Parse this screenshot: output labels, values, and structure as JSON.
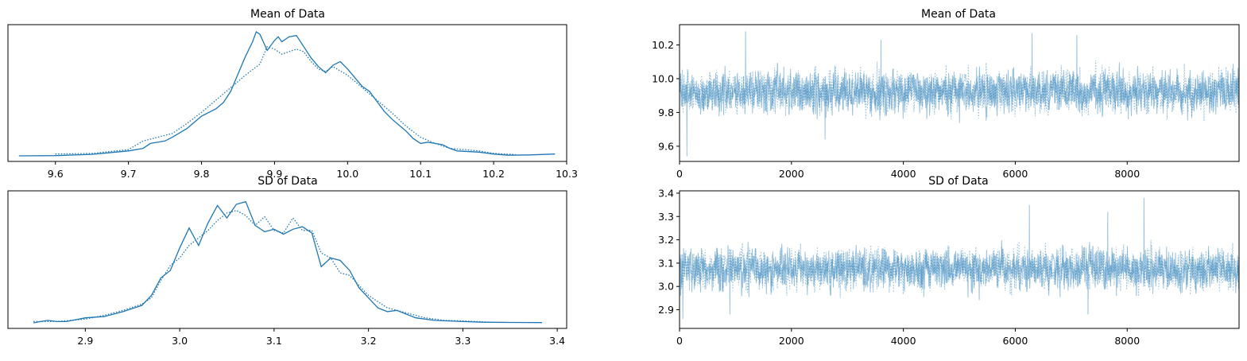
{
  "chart_data": [
    {
      "type": "line",
      "kind": "density",
      "title": "Mean of Data",
      "xlabel": "",
      "ylabel": "",
      "xlim": [
        9.535,
        10.3
      ],
      "x_ticks": [
        "9.6",
        "9.7",
        "9.8",
        "9.9",
        "10.0",
        "10.1",
        "10.2",
        "10.3"
      ],
      "y_ticks": [],
      "grid": false,
      "series": [
        {
          "style": "solid",
          "color": "#1f77b4",
          "x": [
            9.55,
            9.6,
            9.65,
            9.7,
            9.72,
            9.73,
            9.75,
            9.76,
            9.78,
            9.8,
            9.82,
            9.83,
            9.84,
            9.85,
            9.86,
            9.87,
            9.875,
            9.88,
            9.89,
            9.9,
            9.905,
            9.91,
            9.92,
            9.93,
            9.94,
            9.95,
            9.96,
            9.97,
            9.98,
            9.99,
            10.0,
            10.01,
            10.02,
            10.03,
            10.04,
            10.05,
            10.06,
            10.07,
            10.08,
            10.09,
            10.1,
            10.11,
            10.12,
            10.13,
            10.14,
            10.15,
            10.18,
            10.2,
            10.22,
            10.25,
            10.284
          ],
          "y": [
            0.0,
            0.002,
            0.012,
            0.04,
            0.06,
            0.1,
            0.12,
            0.15,
            0.22,
            0.32,
            0.38,
            0.43,
            0.52,
            0.66,
            0.8,
            0.92,
            1.0,
            0.98,
            0.85,
            0.93,
            0.96,
            0.92,
            0.96,
            0.97,
            0.88,
            0.79,
            0.72,
            0.67,
            0.73,
            0.76,
            0.7,
            0.63,
            0.56,
            0.52,
            0.44,
            0.36,
            0.3,
            0.25,
            0.2,
            0.14,
            0.1,
            0.11,
            0.1,
            0.09,
            0.06,
            0.04,
            0.03,
            0.015,
            0.005,
            0.008,
            0.015
          ]
        },
        {
          "style": "dotted",
          "color": "#1f77b4",
          "x": [
            9.6,
            9.65,
            9.7,
            9.72,
            9.74,
            9.76,
            9.78,
            9.8,
            9.82,
            9.84,
            9.86,
            9.88,
            9.89,
            9.9,
            9.91,
            9.92,
            9.93,
            9.94,
            9.95,
            9.96,
            9.97,
            9.98,
            10.0,
            10.02,
            10.04,
            10.06,
            10.08,
            10.1,
            10.12,
            10.14,
            10.16,
            10.18,
            10.2,
            10.23
          ],
          "y": [
            0.015,
            0.02,
            0.05,
            0.12,
            0.15,
            0.18,
            0.26,
            0.35,
            0.45,
            0.55,
            0.65,
            0.74,
            0.88,
            0.86,
            0.82,
            0.84,
            0.86,
            0.84,
            0.76,
            0.7,
            0.68,
            0.72,
            0.65,
            0.55,
            0.45,
            0.35,
            0.24,
            0.15,
            0.1,
            0.06,
            0.05,
            0.04,
            0.02,
            0.01
          ]
        }
      ]
    },
    {
      "type": "line",
      "kind": "trace",
      "title": "Mean of Data",
      "xlabel": "",
      "ylabel": "",
      "xlim": [
        0,
        9999
      ],
      "ylim": [
        9.51,
        10.32
      ],
      "x_ticks": [
        "0",
        "2000",
        "4000",
        "6000",
        "8000"
      ],
      "y_ticks": [
        "9.6",
        "9.8",
        "10.0",
        "10.2"
      ],
      "grid": false,
      "n_draws": 10000,
      "center": 9.92,
      "spread": 0.085,
      "extremes": [
        [
          130,
          9.54
        ],
        [
          1180,
          10.28
        ],
        [
          6300,
          10.27
        ],
        [
          7100,
          10.26
        ],
        [
          2600,
          9.64
        ],
        [
          3600,
          10.23
        ]
      ],
      "series": [
        {
          "style": "solid",
          "color": "#1f77b4",
          "alpha": 0.45
        },
        {
          "style": "dotted",
          "color": "#1f77b4",
          "alpha": 0.45
        }
      ]
    },
    {
      "type": "line",
      "kind": "density",
      "title": "SD of Data",
      "xlabel": "",
      "ylabel": "",
      "xlim": [
        2.818,
        3.41
      ],
      "x_ticks": [
        "2.9",
        "3.0",
        "3.1",
        "3.2",
        "3.3",
        "3.4"
      ],
      "y_ticks": [],
      "grid": false,
      "series": [
        {
          "style": "solid",
          "color": "#1f77b4",
          "x": [
            2.845,
            2.86,
            2.87,
            2.88,
            2.9,
            2.92,
            2.94,
            2.96,
            2.97,
            2.98,
            2.99,
            3.0,
            3.01,
            3.02,
            3.03,
            3.04,
            3.05,
            3.06,
            3.07,
            3.08,
            3.09,
            3.1,
            3.11,
            3.12,
            3.13,
            3.14,
            3.15,
            3.16,
            3.17,
            3.18,
            3.19,
            3.2,
            3.21,
            3.22,
            3.23,
            3.24,
            3.25,
            3.27,
            3.3,
            3.32,
            3.35,
            3.384
          ],
          "y": [
            0.0,
            0.02,
            0.01,
            0.01,
            0.04,
            0.05,
            0.09,
            0.14,
            0.22,
            0.36,
            0.42,
            0.6,
            0.76,
            0.62,
            0.8,
            0.94,
            0.84,
            0.95,
            0.97,
            0.78,
            0.73,
            0.75,
            0.71,
            0.75,
            0.77,
            0.72,
            0.45,
            0.52,
            0.5,
            0.42,
            0.28,
            0.2,
            0.12,
            0.09,
            0.1,
            0.07,
            0.04,
            0.02,
            0.01,
            0.005,
            0.003,
            0.002
          ]
        },
        {
          "style": "dotted",
          "color": "#1f77b4",
          "x": [
            2.845,
            2.87,
            2.9,
            2.92,
            2.94,
            2.96,
            2.97,
            2.98,
            2.99,
            3.0,
            3.01,
            3.02,
            3.03,
            3.04,
            3.05,
            3.06,
            3.07,
            3.08,
            3.09,
            3.1,
            3.11,
            3.12,
            3.13,
            3.14,
            3.15,
            3.16,
            3.17,
            3.18,
            3.19,
            3.2,
            3.22,
            3.24,
            3.26,
            3.28,
            3.3,
            3.33
          ],
          "y": [
            0.01,
            0.01,
            0.03,
            0.06,
            0.1,
            0.15,
            0.2,
            0.34,
            0.46,
            0.52,
            0.62,
            0.68,
            0.74,
            0.82,
            0.88,
            0.9,
            0.86,
            0.78,
            0.85,
            0.74,
            0.72,
            0.84,
            0.74,
            0.74,
            0.56,
            0.52,
            0.4,
            0.38,
            0.3,
            0.22,
            0.12,
            0.08,
            0.04,
            0.02,
            0.015,
            0.005
          ]
        }
      ]
    },
    {
      "type": "line",
      "kind": "trace",
      "title": "SD of Data",
      "xlabel": "",
      "ylabel": "",
      "xlim": [
        0,
        9999
      ],
      "ylim": [
        2.82,
        3.41
      ],
      "x_ticks": [
        "0",
        "2000",
        "4000",
        "6000",
        "8000"
      ],
      "y_ticks": [
        "2.9",
        "3.0",
        "3.1",
        "3.2",
        "3.3",
        "3.4"
      ],
      "grid": false,
      "n_draws": 10000,
      "center": 3.075,
      "spread": 0.06,
      "extremes": [
        [
          8300,
          3.38
        ],
        [
          6250,
          3.35
        ],
        [
          7650,
          3.32
        ],
        [
          60,
          2.86
        ],
        [
          900,
          2.88
        ],
        [
          7300,
          2.88
        ]
      ],
      "series": [
        {
          "style": "solid",
          "color": "#1f77b4",
          "alpha": 0.45
        },
        {
          "style": "dotted",
          "color": "#1f77b4",
          "alpha": 0.45
        }
      ]
    }
  ]
}
